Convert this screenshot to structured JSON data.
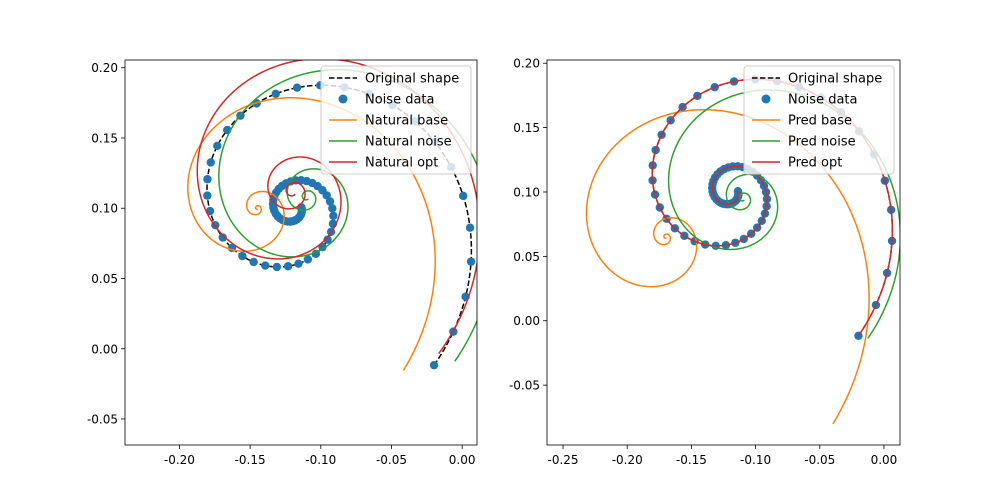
{
  "chart_data": [
    {
      "type": "line",
      "title": "",
      "xlabel": "",
      "ylabel": "",
      "xlim": [
        -0.2385,
        0.0105
      ],
      "ylim": [
        -0.0685,
        0.2055
      ],
      "xticks": [
        "-0.20",
        "-0.15",
        "-0.10",
        "-0.05",
        "0.00"
      ],
      "xtick_values": [
        -0.2,
        -0.15,
        -0.1,
        -0.05,
        0.0
      ],
      "yticks": [
        "-0.05",
        "0.00",
        "0.05",
        "0.10",
        "0.15",
        "0.20"
      ],
      "ytick_values": [
        -0.05,
        0.0,
        0.05,
        0.1,
        0.15,
        0.2
      ],
      "grid": false,
      "legend_position": "top-right",
      "series": [
        {
          "name": "Original shape",
          "kind": "dashed-line",
          "color": "#000000",
          "spiral": {
            "c": [
              -0.12,
              0.1
            ],
            "r0": 0.15,
            "k": 0.235,
            "turns": 2.15
          }
        },
        {
          "name": "Noise data",
          "kind": "scatter",
          "color": "#1f77b4",
          "spiral": {
            "c": [
              -0.12,
              0.1
            ],
            "r0": 0.15,
            "k": 0.235,
            "turns": 2.15,
            "points": 75
          }
        },
        {
          "name": "Natural base",
          "kind": "line",
          "color": "#ff7f0e",
          "spiral": {
            "c": [
              -0.145,
              0.1
            ],
            "r0": 0.155,
            "k": 0.3,
            "turns": 3.0
          }
        },
        {
          "name": "Natural noise",
          "kind": "line",
          "color": "#2ca02c",
          "spiral": {
            "c": [
              -0.11,
              0.108
            ],
            "r0": 0.157,
            "k": 0.24,
            "turns": 3.0
          }
        },
        {
          "name": "Natural opt",
          "kind": "line",
          "color": "#d62728",
          "spiral": {
            "c": [
              -0.12,
              0.112
            ],
            "r0": 0.155,
            "k": 0.215,
            "turns": 3.0
          }
        }
      ]
    },
    {
      "type": "line",
      "title": "",
      "xlabel": "",
      "ylabel": "",
      "xlim": [
        -0.2625,
        0.0125
      ],
      "ylim": [
        -0.0965,
        0.2025
      ],
      "xticks": [
        "-0.25",
        "-0.20",
        "-0.15",
        "-0.10",
        "-0.05",
        "0.00"
      ],
      "xtick_values": [
        -0.25,
        -0.2,
        -0.15,
        -0.1,
        -0.05,
        0.0
      ],
      "yticks": [
        "-0.05",
        "0.00",
        "0.05",
        "0.10",
        "0.15",
        "0.20"
      ],
      "ytick_values": [
        -0.05,
        0.0,
        0.05,
        0.1,
        0.15,
        0.2
      ],
      "grid": false,
      "legend_position": "top-right",
      "series": [
        {
          "name": "Original shape",
          "kind": "dashed-line",
          "color": "#000000",
          "spiral": {
            "c": [
              -0.12,
              0.1
            ],
            "r0": 0.15,
            "k": 0.235,
            "turns": 2.15
          }
        },
        {
          "name": "Noise data",
          "kind": "scatter",
          "color": "#1f77b4",
          "spiral": {
            "c": [
              -0.12,
              0.1
            ],
            "r0": 0.15,
            "k": 0.235,
            "turns": 2.15,
            "points": 75
          }
        },
        {
          "name": "Pred base",
          "kind": "line",
          "color": "#ff7f0e",
          "spiral": {
            "c": [
              -0.17,
              0.065
            ],
            "r0": 0.195,
            "k": 0.3,
            "turns": 3.0
          }
        },
        {
          "name": "Pred noise",
          "kind": "line",
          "color": "#2ca02c",
          "spiral": {
            "c": [
              -0.11,
              0.095
            ],
            "r0": 0.146,
            "k": 0.24,
            "turns": 3.0
          }
        },
        {
          "name": "Pred opt",
          "kind": "line",
          "color": "#d62728",
          "spiral": {
            "c": [
              -0.12,
              0.1
            ],
            "r0": 0.15,
            "k": 0.235,
            "turns": 2.15
          }
        }
      ]
    }
  ]
}
